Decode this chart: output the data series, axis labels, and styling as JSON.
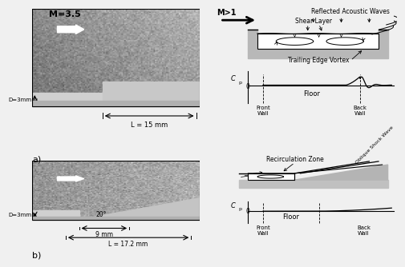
{
  "bg_color": "#f0f0f0",
  "photo_gray": "#888888",
  "step_gray": "#b8b8b8",
  "ramp_gray": "#c0c0c0",
  "cavity_gray": "#c8c8c8",
  "cavity_inner_white": "#ffffff",
  "dark_gray": "#606060",
  "top_diagram_label": "M>1",
  "top_diagram_title": "Reflected Acoustic Waves",
  "shear_layer_label": "Shear Layer",
  "trailing_edge_label": "Trailing Edge Vortex",
  "recirculation_label": "Recirculation Zone",
  "oblique_shock_label": "Oblique Shock Wave",
  "cp_label": "C",
  "cp_sub": "p",
  "zero_label": "0",
  "front_wall_label": "Front\nWall",
  "floor_label_top": "Floor",
  "back_wall_label": "Back\nWall",
  "floor_label_bottom": "Floor",
  "front_wall_label_b": "Front\nWall",
  "back_wall_label_b": "Back\nWall",
  "panel_a_label": "a)",
  "panel_b_label": "b)",
  "m_label": "M=3.5",
  "D_label_a": "D=3mm",
  "L_label_a": "L = 15 mm",
  "D_label_b": "D=3mm",
  "angle_label": "20°",
  "dim_9mm": "9 mm",
  "L_label_b": "L = 17.2 mm"
}
